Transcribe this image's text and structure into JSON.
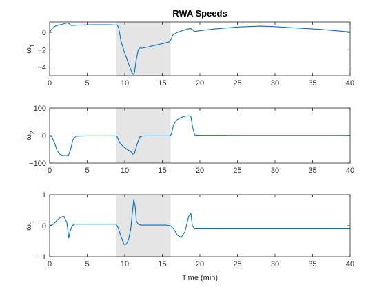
{
  "chart_data": {
    "type": "line",
    "title": "RWA Speeds",
    "xlabel": "Time (min)",
    "xlim": [
      0,
      40
    ],
    "xticks": [
      0,
      5,
      10,
      15,
      20,
      25,
      30,
      35,
      40
    ],
    "shaded_interval": [
      8.9,
      16.1
    ],
    "grid": false,
    "line_color": "#0072BD",
    "shade_color": "#e5e5e5",
    "subplots": [
      {
        "ylabel_base": "ω",
        "ylabel_sub": "1",
        "ylim": [
          -5,
          1.2
        ],
        "yticks": [
          -4,
          -2,
          0
        ],
        "x": [
          0,
          0.3,
          0.6,
          1.0,
          1.5,
          2.0,
          2.4,
          2.6,
          2.9,
          4,
          6,
          8,
          9.0,
          9.2,
          9.5,
          10.0,
          10.5,
          10.8,
          11.0,
          11.15,
          11.3,
          11.5,
          11.8,
          12.0,
          12.3,
          13,
          14,
          15,
          15.9,
          16.1,
          16.4,
          17,
          18,
          18.7,
          18.9,
          19.3,
          20,
          22,
          25,
          28,
          30,
          33,
          36,
          40
        ],
        "y": [
          0.0,
          0.4,
          0.65,
          0.8,
          0.9,
          1.0,
          1.1,
          1.0,
          0.8,
          0.85,
          0.88,
          0.88,
          0.85,
          0.5,
          -1.0,
          -2.4,
          -3.6,
          -4.3,
          -4.7,
          -4.85,
          -4.6,
          -3.3,
          -2.0,
          -1.8,
          -1.82,
          -1.7,
          -1.5,
          -1.3,
          -1.1,
          -0.9,
          -0.3,
          0.0,
          0.3,
          0.45,
          0.4,
          0.1,
          0.2,
          0.4,
          0.62,
          0.72,
          0.66,
          0.5,
          0.35,
          0.05
        ]
      },
      {
        "ylabel_base": "ω",
        "ylabel_sub": "2",
        "ylim": [
          -100,
          100
        ],
        "yticks": [
          -100,
          0,
          100
        ],
        "x": [
          0,
          0.3,
          0.7,
          1.0,
          1.3,
          1.7,
          2.2,
          2.5,
          2.8,
          3.1,
          3.5,
          5,
          7,
          8.8,
          9.0,
          9.3,
          9.8,
          10.3,
          10.8,
          11.1,
          11.3,
          11.6,
          12.0,
          12.3,
          12.7,
          14,
          16.0,
          16.2,
          16.5,
          17.0,
          17.5,
          18.0,
          18.5,
          18.8,
          19.0,
          19.3,
          20,
          25,
          30,
          35,
          40
        ],
        "y": [
          0,
          -5,
          -30,
          -55,
          -67,
          -72,
          -73,
          -72,
          -50,
          -15,
          -2,
          -1,
          -1,
          -1,
          -5,
          -25,
          -40,
          -50,
          -58,
          -68,
          -65,
          -35,
          -5,
          -2,
          -1,
          -1,
          -1,
          5,
          40,
          58,
          66,
          70,
          72,
          70,
          35,
          2,
          1,
          0.5,
          0.5,
          0.5,
          0.5
        ]
      },
      {
        "ylabel_base": "ω",
        "ylabel_sub": "3",
        "ylim": [
          -1,
          1
        ],
        "yticks": [
          -1,
          0,
          1
        ],
        "x": [
          0,
          0.5,
          1.0,
          1.5,
          1.9,
          2.3,
          2.55,
          2.7,
          3.0,
          3.3,
          5,
          8,
          8.8,
          9.1,
          9.5,
          9.9,
          10.2,
          10.5,
          10.8,
          11.0,
          11.2,
          11.4,
          11.55,
          11.8,
          12.1,
          12.5,
          13,
          14,
          15.5,
          16.1,
          16.5,
          17.0,
          17.5,
          18.0,
          18.5,
          18.8,
          19.0,
          19.3,
          20,
          25,
          30,
          35,
          40
        ],
        "y": [
          0.0,
          0.05,
          0.18,
          0.28,
          0.3,
          0.1,
          -0.4,
          -0.2,
          0.0,
          0.05,
          0.05,
          0.05,
          0.05,
          -0.05,
          -0.35,
          -0.6,
          -0.6,
          -0.45,
          -0.1,
          0.4,
          0.85,
          0.6,
          0.15,
          0.05,
          0.02,
          0.02,
          0.02,
          0.02,
          0.02,
          0.0,
          -0.1,
          -0.3,
          -0.38,
          -0.2,
          0.3,
          0.4,
          0.0,
          -0.1,
          -0.1,
          -0.1,
          -0.1,
          -0.1,
          -0.1
        ]
      }
    ]
  }
}
